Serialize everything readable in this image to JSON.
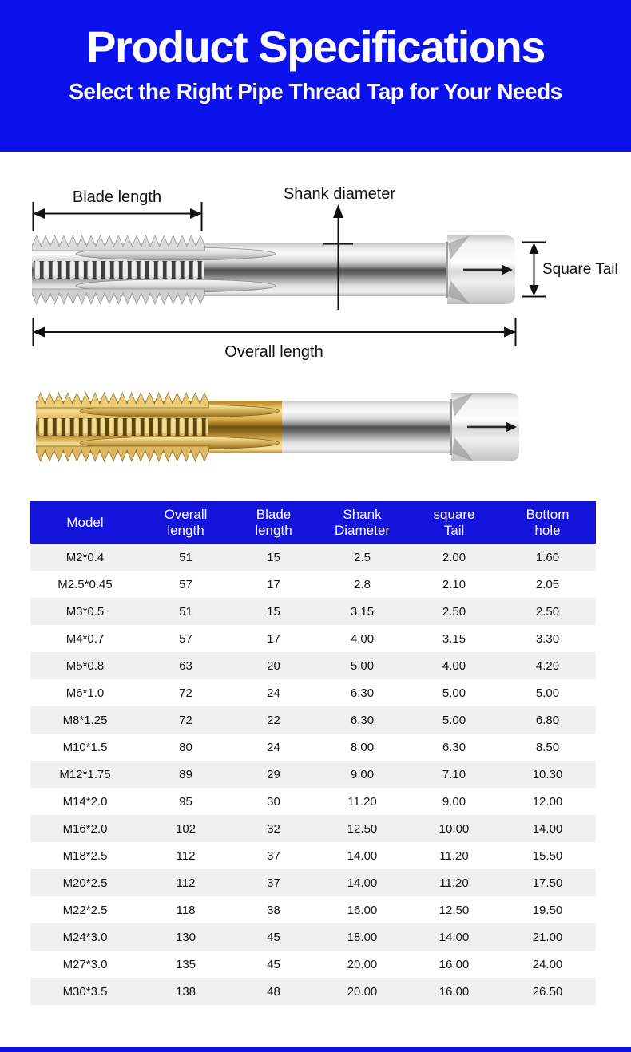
{
  "page": {
    "title": "Product Specifications",
    "subtitle": "Select the Right Pipe Thread Tap for Your Needs"
  },
  "diagram": {
    "blade_length_label": "Blade length",
    "shank_diameter_label": "Shank diameter",
    "square_tail_label": "Square Tail",
    "overall_length_label": "Overall length"
  },
  "colors": {
    "hero_bg": "#0c12ec",
    "table_header_bg": "#1414dd",
    "row_alt_bg": "#f0f0f0",
    "accent_blue": "#0f12e6"
  },
  "table": {
    "columns": [
      [
        "Model"
      ],
      [
        "Overall",
        "length"
      ],
      [
        "Blade",
        "length"
      ],
      [
        "Shank",
        "Diameter"
      ],
      [
        "square",
        "Tail"
      ],
      [
        "Bottom",
        "hole"
      ]
    ],
    "rows": [
      [
        "M2*0.4",
        "51",
        "15",
        "2.5",
        "2.00",
        "1.60"
      ],
      [
        "M2.5*0.45",
        "57",
        "17",
        "2.8",
        "2.10",
        "2.05"
      ],
      [
        "M3*0.5",
        "51",
        "15",
        "3.15",
        "2.50",
        "2.50"
      ],
      [
        "M4*0.7",
        "57",
        "17",
        "4.00",
        "3.15",
        "3.30"
      ],
      [
        "M5*0.8",
        "63",
        "20",
        "5.00",
        "4.00",
        "4.20"
      ],
      [
        "M6*1.0",
        "72",
        "24",
        "6.30",
        "5.00",
        "5.00"
      ],
      [
        "M8*1.25",
        "72",
        "22",
        "6.30",
        "5.00",
        "6.80"
      ],
      [
        "M10*1.5",
        "80",
        "24",
        "8.00",
        "6.30",
        "8.50"
      ],
      [
        "M12*1.75",
        "89",
        "29",
        "9.00",
        "7.10",
        "10.30"
      ],
      [
        "M14*2.0",
        "95",
        "30",
        "11.20",
        "9.00",
        "12.00"
      ],
      [
        "M16*2.0",
        "102",
        "32",
        "12.50",
        "10.00",
        "14.00"
      ],
      [
        "M18*2.5",
        "112",
        "37",
        "14.00",
        "11.20",
        "15.50"
      ],
      [
        "M20*2.5",
        "112",
        "37",
        "14.00",
        "11.20",
        "17.50"
      ],
      [
        "M22*2.5",
        "118",
        "38",
        "16.00",
        "12.50",
        "19.50"
      ],
      [
        "M24*3.0",
        "130",
        "45",
        "18.00",
        "14.00",
        "21.00"
      ],
      [
        "M27*3.0",
        "135",
        "45",
        "20.00",
        "16.00",
        "24.00"
      ],
      [
        "M30*3.5",
        "138",
        "48",
        "20.00",
        "16.00",
        "26.50"
      ]
    ]
  }
}
